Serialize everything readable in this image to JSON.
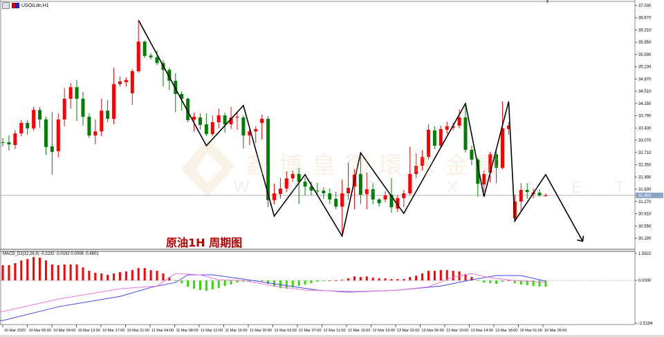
{
  "window": {
    "title": "USOILdn,H1"
  },
  "annotation": "原油1H 周期图",
  "watermark": {
    "cn": "鑫博皇御環球金融",
    "en": "W W . B I X . N E T"
  },
  "macd_label": "MACD_D1(12,26,9) -0.2232 -0.0192 0.0008 -0.4801",
  "colors": {
    "bull": "#ff0000",
    "bear": "#008000",
    "hist_up": "#ff0000",
    "hist_down": "#33dd00",
    "macd_line": "#ee77dd",
    "signal_line": "#4444ee",
    "zigzag": "#000000"
  },
  "chart_data": {
    "type": "candlestick",
    "symbol": "USOILdn,H1",
    "price_axis": {
      "ticks": [
        "37.030",
        "36.670",
        "36.310",
        "35.950",
        "35.590",
        "35.230",
        "34.870",
        "34.510",
        "34.150",
        "33.790",
        "33.430",
        "33.070",
        "32.710",
        "32.350",
        "31.990",
        "31.630",
        "31.270",
        "30.910",
        "30.550",
        "30.190"
      ],
      "range": [
        30.19,
        37.03
      ],
      "current_price": "31.450"
    },
    "time_axis": {
      "ticks": [
        "10 Mar 2020",
        "10 Mar 05:00",
        "10 Mar 09:00",
        "10 Mar 13:00",
        "10 Mar 17:00",
        "10 Mar 21:00",
        "11 Mar 04:00",
        "11 Mar 08:00",
        "11 Mar 12:00",
        "11 Mar 16:00",
        "11 Mar 20:00",
        "12 Mar 03:00",
        "12 Mar 07:00",
        "12 Mar 11:00",
        "12 Mar 15:00",
        "12 Mar 19:00",
        "13 Mar 02:00",
        "13 Mar 06:00",
        "13 Mar 10:00",
        "13 Mar 14:00",
        "13 Mar 18:00",
        "16 Mar 01:00",
        "16 Mar 05:00"
      ]
    },
    "ohlc": [
      [
        33.01,
        33.13,
        32.89,
        33.0
      ],
      [
        33.01,
        33.21,
        32.77,
        32.95
      ],
      [
        32.93,
        33.37,
        32.81,
        33.27
      ],
      [
        33.27,
        33.66,
        33.19,
        33.58
      ],
      [
        33.58,
        33.66,
        33.23,
        33.42
      ],
      [
        33.42,
        34.05,
        33.35,
        33.96
      ],
      [
        33.96,
        34.05,
        33.44,
        33.68
      ],
      [
        33.68,
        33.76,
        32.64,
        32.87
      ],
      [
        32.89,
        33.9,
        32.06,
        32.73
      ],
      [
        32.75,
        33.86,
        32.56,
        33.68
      ],
      [
        33.68,
        34.61,
        33.48,
        34.29
      ],
      [
        34.29,
        34.76,
        34.0,
        34.63
      ],
      [
        34.63,
        34.84,
        33.64,
        34.29
      ],
      [
        34.29,
        34.49,
        33.5,
        33.76
      ],
      [
        33.76,
        33.86,
        33.13,
        33.21
      ],
      [
        33.21,
        33.68,
        32.95,
        33.33
      ],
      [
        33.33,
        34.29,
        33.19,
        33.94
      ],
      [
        33.94,
        34.25,
        33.6,
        33.7
      ],
      [
        33.7,
        35.2,
        33.54,
        34.72
      ],
      [
        34.72,
        34.94,
        34.65,
        34.8
      ],
      [
        34.78,
        34.92,
        34.65,
        34.84
      ],
      [
        34.45,
        35.16,
        34.11,
        35.1
      ],
      [
        35.1,
        36.6,
        35.06,
        35.97
      ],
      [
        35.97,
        36.0,
        35.49,
        35.55
      ],
      [
        35.56,
        35.63,
        35.45,
        35.51
      ],
      [
        35.51,
        35.71,
        35.28,
        35.34
      ],
      [
        35.34,
        35.42,
        34.65,
        35.14
      ],
      [
        35.14,
        35.2,
        34.55,
        34.82
      ],
      [
        34.82,
        35.04,
        33.9,
        34.43
      ],
      [
        34.43,
        34.51,
        33.94,
        34.29
      ],
      [
        34.29,
        34.33,
        33.6,
        33.66
      ],
      [
        33.68,
        33.88,
        33.33,
        33.76
      ],
      [
        33.74,
        33.86,
        33.38,
        33.52
      ],
      [
        33.54,
        33.86,
        33.19,
        33.25
      ],
      [
        33.25,
        33.8,
        33.19,
        33.6
      ],
      [
        33.6,
        34.0,
        33.42,
        33.8
      ],
      [
        33.8,
        33.88,
        33.29,
        33.54
      ],
      [
        33.54,
        34.05,
        33.4,
        33.74
      ],
      [
        33.74,
        33.88,
        33.38,
        33.76
      ],
      [
        33.74,
        33.8,
        32.83,
        33.21
      ],
      [
        33.21,
        33.4,
        32.93,
        33.33
      ],
      [
        33.33,
        33.48,
        32.99,
        33.4
      ],
      [
        33.58,
        33.82,
        33.09,
        33.7
      ],
      [
        33.7,
        33.78,
        31.1,
        31.31
      ],
      [
        31.31,
        31.79,
        31.18,
        31.51
      ],
      [
        31.49,
        31.96,
        31.35,
        31.65
      ],
      [
        31.65,
        32.16,
        31.55,
        31.95
      ],
      [
        31.95,
        32.18,
        31.84,
        32.08
      ],
      [
        32.08,
        32.26,
        31.2,
        31.85
      ],
      [
        31.85,
        31.98,
        31.45,
        31.71
      ],
      [
        31.71,
        31.85,
        31.45,
        31.59
      ],
      [
        31.59,
        31.82,
        31.45,
        31.57
      ],
      [
        31.59,
        31.69,
        31.35,
        31.51
      ],
      [
        31.51,
        31.65,
        31.2,
        31.33
      ],
      [
        31.35,
        31.55,
        31.04,
        31.12
      ],
      [
        31.12,
        31.91,
        30.33,
        31.51
      ],
      [
        31.51,
        32.42,
        31.33,
        31.67
      ],
      [
        31.71,
        32.22,
        31.04,
        32.06
      ],
      [
        32.08,
        32.62,
        31.2,
        31.47
      ],
      [
        31.49,
        32.12,
        31.04,
        31.63
      ],
      [
        31.63,
        31.81,
        31.18,
        31.33
      ],
      [
        31.33,
        31.37,
        31.12,
        31.22
      ],
      [
        31.33,
        31.57,
        31.25,
        31.45
      ],
      [
        31.47,
        31.95,
        30.94,
        31.1
      ],
      [
        31.06,
        31.45,
        30.96,
        31.37
      ],
      [
        31.37,
        31.61,
        31.1,
        31.51
      ],
      [
        31.51,
        32.88,
        31.45,
        32.08
      ],
      [
        32.08,
        32.69,
        31.96,
        32.32
      ],
      [
        32.32,
        32.78,
        32.18,
        32.58
      ],
      [
        32.58,
        33.54,
        32.5,
        33.38
      ],
      [
        33.36,
        33.48,
        32.81,
        32.91
      ],
      [
        32.91,
        33.5,
        32.85,
        33.4
      ],
      [
        33.38,
        33.62,
        33.25,
        33.48
      ],
      [
        33.44,
        33.58,
        33.36,
        33.48
      ],
      [
        33.5,
        33.98,
        33.42,
        33.74
      ],
      [
        33.74,
        34.15,
        32.71,
        32.79
      ],
      [
        32.79,
        32.91,
        32.34,
        32.5
      ],
      [
        32.5,
        32.56,
        31.41,
        31.79
      ],
      [
        31.77,
        32.18,
        31.55,
        32.08
      ],
      [
        32.12,
        32.73,
        31.83,
        32.66
      ],
      [
        32.66,
        32.75,
        31.81,
        32.26
      ],
      [
        32.26,
        34.21,
        32.22,
        33.42
      ],
      [
        33.4,
        33.6,
        33.23,
        33.5
      ],
      [
        30.78,
        31.47,
        30.66,
        31.27
      ],
      [
        31.27,
        31.81,
        30.96,
        31.61
      ],
      [
        31.61,
        31.81,
        31.35,
        31.55
      ],
      [
        31.49,
        31.65,
        31.37,
        31.53
      ],
      [
        31.53,
        31.63,
        31.41,
        31.45
      ],
      [
        31.45,
        31.51,
        31.41,
        31.45
      ]
    ],
    "zigzag": [
      [
        23,
        36.6
      ],
      [
        34,
        32.91
      ],
      [
        40,
        34.09
      ],
      [
        45,
        30.84
      ],
      [
        50,
        32.06
      ],
      [
        56,
        30.25
      ],
      [
        59,
        32.7
      ],
      [
        66,
        30.92
      ],
      [
        76,
        34.15
      ],
      [
        79,
        31.41
      ],
      [
        83,
        34.21
      ],
      [
        84,
        30.7
      ],
      [
        89,
        32.06
      ],
      [
        95,
        30.1
      ]
    ],
    "macd": {
      "params": "12,26,9",
      "axis_ticks": [
        "1.5922",
        "0.0000",
        "-2.5194"
      ],
      "range": [
        -2.5194,
        1.5922
      ],
      "histogram": [
        0.9,
        0.9,
        1.02,
        1.18,
        1.26,
        1.38,
        1.34,
        1.18,
        0.94,
        0.9,
        0.94,
        0.94,
        0.94,
        0.77,
        0.57,
        0.45,
        0.41,
        0.33,
        0.41,
        0.49,
        0.53,
        0.61,
        0.73,
        0.73,
        0.61,
        0.57,
        0.41,
        0.2,
        -0.04,
        -0.16,
        -0.37,
        -0.49,
        -0.57,
        -0.61,
        -0.53,
        -0.45,
        -0.33,
        -0.24,
        -0.12,
        -0.08,
        -0.08,
        -0.04,
        0.0,
        -0.2,
        -0.37,
        -0.45,
        -0.49,
        -0.41,
        -0.33,
        -0.24,
        -0.16,
        -0.08,
        -0.04,
        0.0,
        0.0,
        0.04,
        0.12,
        0.24,
        0.2,
        0.24,
        0.16,
        0.12,
        0.12,
        0.08,
        0.08,
        0.08,
        0.2,
        0.28,
        0.41,
        0.57,
        0.57,
        0.61,
        0.61,
        0.57,
        0.53,
        0.37,
        0.2,
        -0.04,
        -0.12,
        -0.16,
        -0.2,
        -0.08,
        0.0,
        -0.16,
        -0.24,
        -0.28,
        -0.33,
        -0.37,
        -0.37
      ],
      "macd_line": [
        [
          1,
          -1.83
        ],
        [
          10,
          -1.1
        ],
        [
          20,
          -0.49
        ],
        [
          26,
          -0.33
        ],
        [
          29,
          0.41
        ],
        [
          33,
          0.33
        ],
        [
          36,
          0.04
        ],
        [
          40,
          0.0
        ],
        [
          45,
          -0.33
        ],
        [
          50,
          -0.57
        ],
        [
          58,
          -0.65
        ],
        [
          65,
          -0.57
        ],
        [
          70,
          -0.37
        ],
        [
          74,
          0.2
        ],
        [
          77,
          0.41
        ],
        [
          80,
          0.16
        ],
        [
          84,
          0.0
        ],
        [
          89,
          -0.12
        ]
      ],
      "signal_line": [
        [
          1,
          -2.36
        ],
        [
          10,
          -1.55
        ],
        [
          20,
          -0.94
        ],
        [
          25,
          -0.41
        ],
        [
          29,
          -0.12
        ],
        [
          31,
          0.33
        ],
        [
          35,
          0.33
        ],
        [
          40,
          0.08
        ],
        [
          45,
          -0.2
        ],
        [
          52,
          -0.57
        ],
        [
          57,
          -0.69
        ],
        [
          65,
          -0.57
        ],
        [
          72,
          -0.33
        ],
        [
          77,
          0.04
        ],
        [
          81,
          0.29
        ],
        [
          85,
          0.29
        ],
        [
          89,
          -0.04
        ]
      ]
    }
  }
}
